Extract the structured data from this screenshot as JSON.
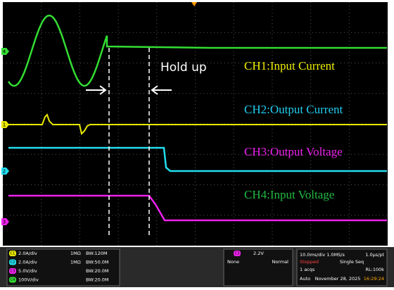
{
  "screen": {
    "annotation": "Hold up",
    "channel_labels": [
      "CH1:Input Current",
      "CH2:Output Current",
      "CH3:Output Voltage",
      "CH4:Input Voltage"
    ],
    "markers": [
      "4",
      "1",
      "2",
      "3"
    ],
    "channels": [
      {
        "badge": "C1",
        "scale": "2.0A/div",
        "coupling": "1MΩ",
        "bw": "BW:120M"
      },
      {
        "badge": "C2",
        "scale": "2.0A/div",
        "coupling": "1MΩ",
        "bw": "BW:50.0M"
      },
      {
        "badge": "C3",
        "scale": "5.0V/div",
        "coupling": "",
        "bw": "BW:20.0M"
      },
      {
        "badge": "C4",
        "scale": "100V/div",
        "coupling": "",
        "bw": "BW:20.0M"
      }
    ],
    "trigger": {
      "source": "C3",
      "level": "2.2V",
      "left": "None",
      "right": "Normal"
    },
    "timebase": {
      "rate": "10.0ms/div 1.0MS/s",
      "pt": "1.0µs/pt",
      "state": "Stopped",
      "mode": "Single Seq",
      "acqs": "1 acqs",
      "rl": "RL:100k",
      "auto": "Auto",
      "date": "November 28, 2025",
      "time": "16:29:24"
    }
  }
}
